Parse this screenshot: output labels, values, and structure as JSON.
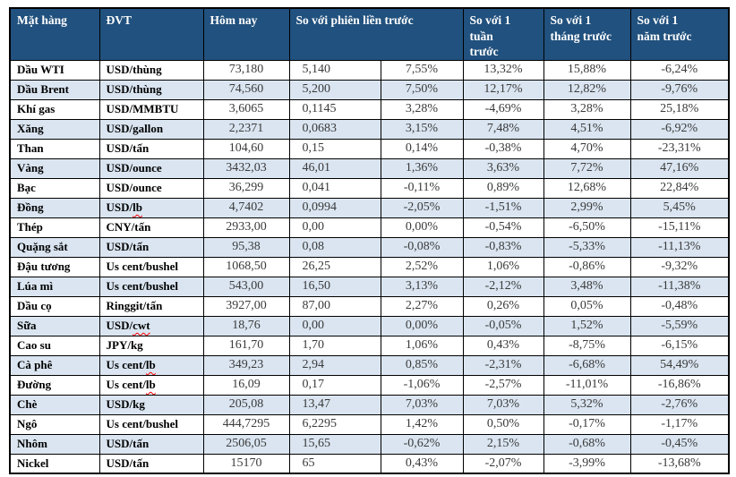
{
  "colors": {
    "header_bg": "#21517E",
    "header_text": "#FFFFFF",
    "row_alt_bg": "#DAE5F1",
    "border": "#000000",
    "value_text": "#3A3A3A",
    "label_text": "#000000",
    "spellcheck_underline": "#FF0000"
  },
  "table": {
    "headers": [
      "Mặt hàng",
      "ĐVT",
      "Hôm nay",
      "So với phiên liền trước",
      "So với 1\ntuần\ntrước",
      "So với 1\ntháng trước",
      "So với 1\nnăm trước"
    ],
    "rows": [
      {
        "name": "Dầu WTI",
        "unit": "USD/thùng",
        "today": "73,180",
        "chg": "5,140",
        "pct_session": "7,55%",
        "pct_week": "13,32%",
        "pct_month": "15,88%",
        "pct_year": "-6,24%"
      },
      {
        "name": "Dầu Brent",
        "unit": "USD/thùng",
        "today": "74,560",
        "chg": "5,200",
        "pct_session": "7,50%",
        "pct_week": "12,17%",
        "pct_month": "12,82%",
        "pct_year": "-9,76%"
      },
      {
        "name": "Khí gas",
        "unit": "USD/MMBTU",
        "today": "3,6065",
        "chg": "0,1145",
        "pct_session": "3,28%",
        "pct_week": "-4,69%",
        "pct_month": "3,28%",
        "pct_year": "25,18%"
      },
      {
        "name": "Xăng",
        "unit": "USD/gallon",
        "today": "2,2371",
        "chg": "0,0683",
        "pct_session": "3,15%",
        "pct_week": "7,48%",
        "pct_month": "4,51%",
        "pct_year": "-6,92%"
      },
      {
        "name": "Than",
        "unit": "USD/tấn",
        "today": "104,60",
        "chg": "0,15",
        "pct_session": "0,14%",
        "pct_week": "-0,38%",
        "pct_month": "4,70%",
        "pct_year": "-23,31%"
      },
      {
        "name": "Vàng",
        "unit": "USD/ounce",
        "today": "3432,03",
        "chg": "46,01",
        "pct_session": "1,36%",
        "pct_week": "3,63%",
        "pct_month": "7,72%",
        "pct_year": "47,16%"
      },
      {
        "name": "Bạc",
        "unit": "USD/ounce",
        "today": "36,299",
        "chg": "0,041",
        "pct_session": "-0,11%",
        "pct_week": "0,89%",
        "pct_month": "12,68%",
        "pct_year": "22,84%"
      },
      {
        "name": "Đồng",
        "unit": "USD/lb",
        "unit_flag": "lb",
        "today": "4,7402",
        "chg": "0,0994",
        "pct_session": "-2,05%",
        "pct_week": "-1,51%",
        "pct_month": "2,99%",
        "pct_year": "5,45%"
      },
      {
        "name": "Thép",
        "unit": "CNY/tấn",
        "today": "2933,00",
        "chg": "0,00",
        "pct_session": "0,00%",
        "pct_week": "-0,54%",
        "pct_month": "-6,50%",
        "pct_year": "-15,11%"
      },
      {
        "name": "Quặng sắt",
        "unit": "USD/tấn",
        "today": "95,38",
        "chg": "0,08",
        "pct_session": "-0,08%",
        "pct_week": "-0,83%",
        "pct_month": "-5,33%",
        "pct_year": "-11,13%"
      },
      {
        "name": "Đậu tương",
        "unit": "Us cent/bushel",
        "today": "1068,50",
        "chg": "26,25",
        "pct_session": "2,52%",
        "pct_week": "1,06%",
        "pct_month": "-0,86%",
        "pct_year": "-9,32%"
      },
      {
        "name": "Lúa mì",
        "unit": "Us cent/bushel",
        "today": "543,00",
        "chg": "16,50",
        "pct_session": "3,13%",
        "pct_week": "-2,12%",
        "pct_month": "3,48%",
        "pct_year": "-11,38%"
      },
      {
        "name": "Dầu cọ",
        "unit": "Ringgit/tấn",
        "today": "3927,00",
        "chg": "87,00",
        "pct_session": "2,27%",
        "pct_week": "0,26%",
        "pct_month": "0,05%",
        "pct_year": "-0,48%"
      },
      {
        "name": "Sữa",
        "unit": "USD/cwt",
        "unit_flag": "cwt",
        "today": "18,76",
        "chg": "0,00",
        "pct_session": "0,00%",
        "pct_week": "-0,05%",
        "pct_month": "1,52%",
        "pct_year": "-5,59%"
      },
      {
        "name": "Cao su",
        "unit": "JPY/kg",
        "today": "161,70",
        "chg": "1,70",
        "pct_session": "1,06%",
        "pct_week": "0,43%",
        "pct_month": "-8,75%",
        "pct_year": "-6,15%"
      },
      {
        "name": "Cà phê",
        "unit": "Us cent/lb",
        "unit_flag": "lb",
        "today": "349,23",
        "chg": "2,94",
        "pct_session": "0,85%",
        "pct_week": "-2,31%",
        "pct_month": "-6,68%",
        "pct_year": "54,49%"
      },
      {
        "name": "Đường",
        "unit": "Us cent/lb",
        "unit_flag": "lb",
        "today": "16,09",
        "chg": "0,17",
        "pct_session": "-1,06%",
        "pct_week": "-2,57%",
        "pct_month": "-11,01%",
        "pct_year": "-16,86%"
      },
      {
        "name": "Chè",
        "unit": "USD/kg",
        "today": "205,08",
        "chg": "13,47",
        "pct_session": "7,03%",
        "pct_week": "7,03%",
        "pct_month": "5,32%",
        "pct_year": "-2,76%"
      },
      {
        "name": "Ngô",
        "unit": "Us cent/bushel",
        "today": "444,7295",
        "chg": "6,2295",
        "pct_session": "1,42%",
        "pct_week": "0,50%",
        "pct_month": "-0,17%",
        "pct_year": "-1,17%"
      },
      {
        "name": "Nhôm",
        "unit": "USD/tấn",
        "today": "2506,05",
        "chg": "15,65",
        "pct_session": "-0,62%",
        "pct_week": "2,15%",
        "pct_month": "-0,68%",
        "pct_year": "-0,45%"
      },
      {
        "name": "Nickel",
        "unit": "USD/tấn",
        "today": "15170",
        "chg": "65",
        "pct_session": "0,43%",
        "pct_week": "-2,07%",
        "pct_month": "-3,99%",
        "pct_year": "-13,68%"
      }
    ]
  }
}
